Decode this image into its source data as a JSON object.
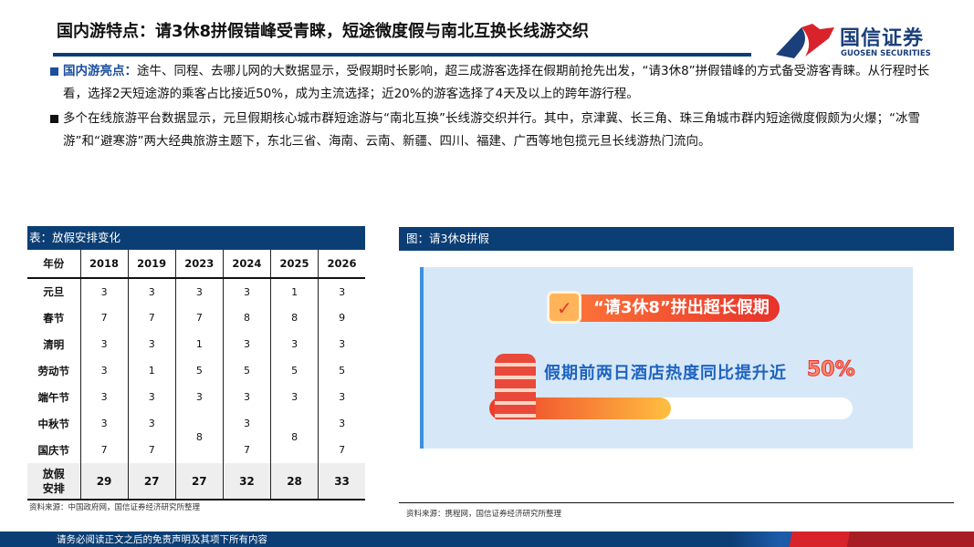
{
  "header": {
    "title": "国内游特点：请3休8拼假错峰受青睐，短途微度假与南北互换长线游交织"
  },
  "logo": {
    "cn": "国信证券",
    "en": "GUOSEN SECURITIES"
  },
  "bullets": [
    {
      "highlight": "国内游亮点：",
      "text": "途牛、同程、去哪儿网的大数据显示，受假期时长影响，超三成游客选择在假期前抢先出发，“请3休8”拼假错峰的方式备受游客青睐。从行程时长看，选择2天短途游的乘客占比接近50%，成为主流选择；近20%的游客选择了4天及以上的跨年游行程。"
    },
    {
      "highlight": "",
      "text": "多个在线旅游平台数据显示，元旦假期核心城市群短途游与“南北互换”长线游交织并行。其中，京津冀、长三角、珠三角城市群内短途微度假颇为火爆；“冰雪游”和“避寒游”两大经典旅游主题下，东北三省、海南、云南、新疆、四川、福建、广西等地包揽元旦长线游热门流向。"
    }
  ],
  "table": {
    "caption": "表：放假安排变化",
    "headers": [
      "年份",
      "2018",
      "2019",
      "2023",
      "2024",
      "2025",
      "2026"
    ],
    "rows": [
      [
        "元旦",
        "3",
        "3",
        "3",
        "3",
        "1",
        "3"
      ],
      [
        "春节",
        "7",
        "7",
        "7",
        "8",
        "8",
        "9"
      ],
      [
        "清明",
        "3",
        "3",
        "1",
        "3",
        "3",
        "3"
      ],
      [
        "劳动节",
        "3",
        "1",
        "5",
        "5",
        "5",
        "5"
      ],
      [
        "端午节",
        "3",
        "3",
        "3",
        "3",
        "3",
        "3"
      ]
    ],
    "midautumn": [
      "中秋节",
      "3",
      "3",
      "3",
      "3"
    ],
    "national": [
      "国庆节",
      "7",
      "7",
      "7",
      "7"
    ],
    "merged": {
      "2023": "8",
      "2025": "8"
    },
    "total": [
      "放假安排",
      "29",
      "27",
      "27",
      "32",
      "28",
      "33"
    ],
    "source": "资料来源：中国政府网，国信证券经济研究所整理"
  },
  "figure": {
    "caption": "图：请3休8拼假",
    "badge": "“请3休8”拼出超长假期",
    "stat": "假期前两日酒店热度同比提升近",
    "percent": "50%",
    "progress_percent": 50,
    "source": "资料来源：携程网，国信证券经济研究所整理"
  },
  "footer": {
    "text": "请务必阅读正文之后的免责声明及其项下所有内容"
  },
  "colors": {
    "brand_blue": "#0b3e74",
    "brand_red": "#d8232a",
    "highlight": "#1b4f9c"
  }
}
